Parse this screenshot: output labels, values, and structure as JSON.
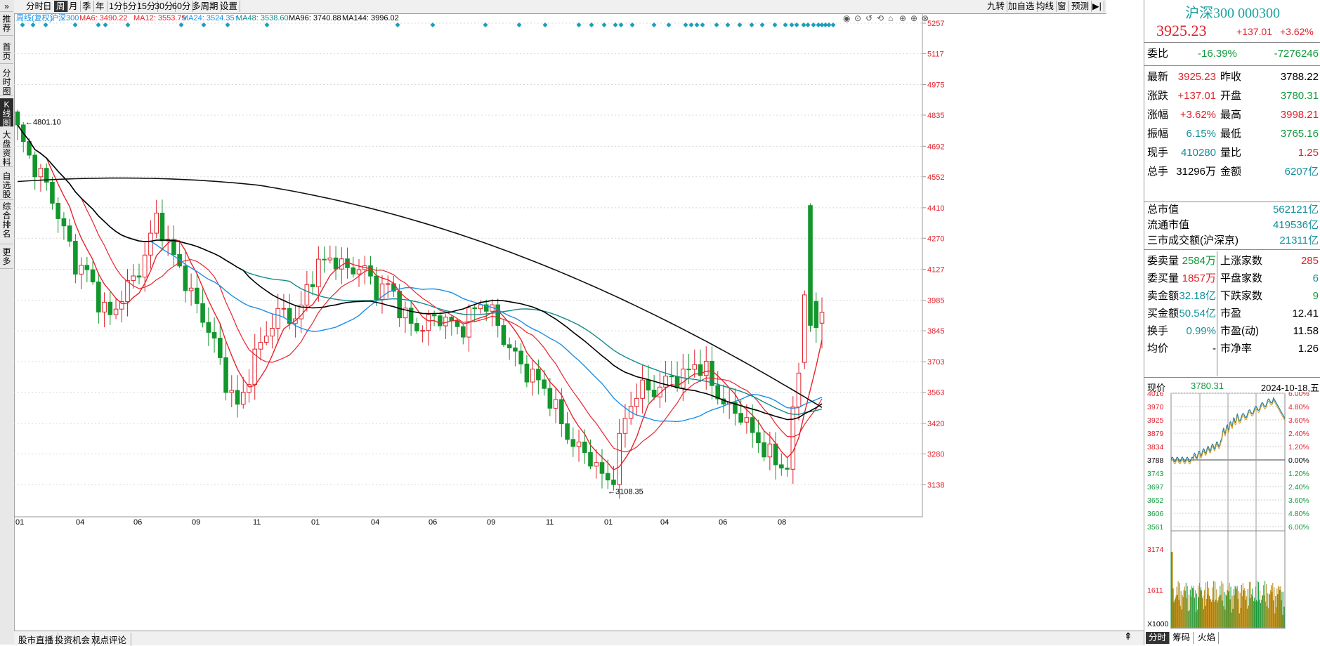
{
  "leftbar": [
    {
      "label": "推荐",
      "active": false
    },
    {
      "label": "首页",
      "active": false
    },
    {
      "label": "分时图",
      "active": false
    },
    {
      "label": "K线图",
      "active": true
    },
    {
      "label": "大盘资料",
      "active": false
    },
    {
      "label": "自选股",
      "active": false
    },
    {
      "label": "综合排名",
      "active": false
    },
    {
      "label": "更多",
      "active": false
    }
  ],
  "periods": [
    "分时",
    "日",
    "周",
    "月",
    "季",
    "年",
    "1分",
    "5分",
    "15分",
    "30分",
    "60分",
    "多周期",
    "设置"
  ],
  "active_period": "周",
  "right_toolbar": [
    "九转",
    "加自选",
    "均线",
    "窗",
    "预测"
  ],
  "legend": {
    "head": "周线(复权)",
    "name": "沪深300",
    "ma6": "MA6: 3490.22",
    "ma12": "MA12: 3553.79",
    "ma24": "MA24: 3524.35↑",
    "ma48": "MA48: 3538.60",
    "ma96": "MA96: 3740.88",
    "ma144": "MA144: 3996.02"
  },
  "colors": {
    "up": "#e0212b",
    "down": "#13962c",
    "ma6": "#e8242c",
    "ma12": "#e8242c",
    "ma24": "#1b8fe8",
    "ma48": "#138a8a",
    "ma96": "#000000",
    "ma144": "#111111",
    "axis": "#e0212b"
  },
  "y_axis_labels": [
    "5257",
    "5117",
    "4975",
    "4835",
    "4692",
    "4552",
    "4410",
    "4270",
    "4127",
    "3985",
    "3845",
    "3703",
    "3563",
    "3420",
    "3280",
    "3138"
  ],
  "x_axis_labels": [
    "01",
    "04",
    "06",
    "09",
    "11",
    "01",
    "04",
    "06",
    "09",
    "11",
    "01",
    "04",
    "06",
    "08"
  ],
  "annotations": {
    "high": "4801.10",
    "low": "3108.35"
  },
  "bottom_tabs": [
    "股市直播",
    "投资机会",
    "观点评论"
  ],
  "stock": {
    "title": "沪深300 000300",
    "price": "3925.23",
    "change": "+137.01",
    "pct": "+3.62%"
  },
  "weibi": {
    "label": "委比",
    "pct": "-16.39%",
    "val": "-7276246"
  },
  "quotes": [
    {
      "l1": "最新",
      "v1": "3925.23",
      "c1": "red",
      "l2": "昨收",
      "v2": "3788.22",
      "c2": "blk"
    },
    {
      "l1": "涨跌",
      "v1": "+137.01",
      "c1": "red",
      "l2": "开盘",
      "v2": "3780.31",
      "c2": "grn"
    },
    {
      "l1": "涨幅",
      "v1": "+3.62%",
      "c1": "red",
      "l2": "最高",
      "v2": "3998.21",
      "c2": "red"
    },
    {
      "l1": "振幅",
      "v1": "6.15%",
      "c1": "teal",
      "l2": "最低",
      "v2": "3765.16",
      "c2": "grn"
    },
    {
      "l1": "现手",
      "v1": "410280",
      "c1": "teal",
      "l2": "量比",
      "v2": "1.25",
      "c2": "red"
    },
    {
      "l1": "总手",
      "v1": "31296万",
      "c1": "blk",
      "l2": "金额",
      "v2": "6207亿",
      "c2": "teal"
    }
  ],
  "market": [
    {
      "l": "总市值",
      "v": "562121亿"
    },
    {
      "l": "流通市值",
      "v": "419536亿"
    },
    {
      "l": "三市成交额(沪深京)",
      "v": "21311亿"
    }
  ],
  "stats": [
    {
      "l1": "委卖量",
      "v1": "2584万",
      "c1": "grn",
      "l2": "上涨家数",
      "v2": "285",
      "c2": "red"
    },
    {
      "l1": "委买量",
      "v1": "1857万",
      "c1": "red",
      "l2": "平盘家数",
      "v2": "6",
      "c2": "teal"
    },
    {
      "l1": "卖金额",
      "v1": "32.18亿",
      "c1": "teal",
      "l2": "下跌家数",
      "v2": "9",
      "c2": "grn"
    },
    {
      "l1": "买金额",
      "v1": "50.54亿",
      "c1": "teal",
      "l2": "市盈",
      "v2": "12.41",
      "c2": "blk"
    },
    {
      "l1": "换手",
      "v1": "0.99%",
      "c1": "teal",
      "l2": "市盈(动)",
      "v2": "11.58",
      "c2": "blk"
    },
    {
      "l1": "均价",
      "v1": "-",
      "c1": "blk",
      "l2": "市净率",
      "v2": "1.26",
      "c2": "blk"
    }
  ],
  "mini": {
    "label": "现价",
    "price": "3780.31",
    "date": "2024-10-18,五",
    "left_labels": [
      "4016",
      "3970",
      "3925",
      "3879",
      "3834",
      "3788",
      "3743",
      "3697",
      "3652",
      "3606",
      "3561"
    ],
    "right_labels": [
      "6.00%",
      "4.80%",
      "3.60%",
      "2.40%",
      "1.20%",
      "0.00%",
      "1.20%",
      "2.40%",
      "3.60%",
      "4.80%",
      "6.00%"
    ],
    "vol_labels": [
      "3174",
      "1611"
    ],
    "x1000": "X1000"
  },
  "panel_tabs": [
    "分时",
    "筹码",
    "火焰"
  ],
  "chart_data": {
    "type": "candlestick",
    "title": "沪深300 周线(复权)",
    "y_range": [
      3108.35,
      5257
    ],
    "y_ticks": [
      5257,
      5117,
      4975,
      4835,
      4692,
      4552,
      4410,
      4270,
      4127,
      3985,
      3845,
      3703,
      3563,
      3420,
      3280,
      3138
    ],
    "x_ticks": [
      "01",
      "04",
      "06",
      "09",
      "11",
      "01",
      "04",
      "06",
      "09",
      "11",
      "01",
      "04",
      "06",
      "08"
    ],
    "path": [
      4760,
      4640,
      4560,
      4450,
      4300,
      4150,
      4110,
      3980,
      3900,
      4020,
      4080,
      4200,
      4380,
      4220,
      4130,
      3990,
      3900,
      3770,
      3590,
      3480,
      3680,
      3800,
      3900,
      3940,
      3880,
      4080,
      4150,
      4190,
      4120,
      4140,
      4110,
      4020,
      4060,
      3920,
      3860,
      3870,
      3920,
      3880,
      3850,
      3930,
      3990,
      3890,
      3780,
      3700,
      3640,
      3600,
      3500,
      3380,
      3300,
      3280,
      3180,
      3150,
      3430,
      3560,
      3580,
      3570,
      3640,
      3620,
      3700,
      3660,
      3560,
      3480,
      3470,
      3370,
      3310,
      3240,
      3220,
      3660,
      3980,
      3925
    ],
    "events": {
      "high": 4801.1,
      "low": 3108.35
    }
  }
}
